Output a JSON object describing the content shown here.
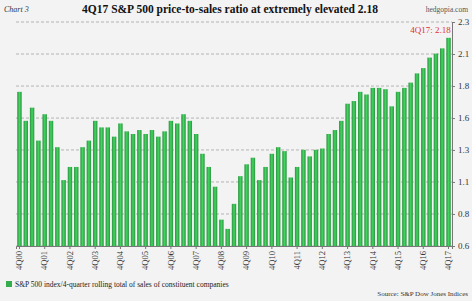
{
  "chart_data": {
    "type": "bar",
    "chart_label": "Chart 3",
    "credit": "hedgopia.com",
    "title": "4Q17 S&P 500 price-to-sales ratio at extremely elevated 2.18",
    "annotations": [
      "4Q17: 2.18"
    ],
    "source": "Source: S&P Dow Jones Indices",
    "categories": [
      "4Q00",
      null,
      null,
      null,
      "4Q01",
      null,
      null,
      null,
      "4Q02",
      null,
      null,
      null,
      "4Q03",
      null,
      null,
      null,
      "4Q04",
      null,
      null,
      null,
      "4Q05",
      null,
      null,
      null,
      "4Q06",
      null,
      null,
      null,
      "4Q07",
      null,
      null,
      null,
      "4Q08",
      null,
      null,
      null,
      "4Q09",
      null,
      null,
      null,
      "4Q10",
      null,
      null,
      null,
      "4Q11",
      null,
      null,
      null,
      "4Q12",
      null,
      null,
      null,
      "4Q13",
      null,
      null,
      null,
      "4Q14",
      null,
      null,
      null,
      "4Q15",
      null,
      null,
      null,
      "4Q16",
      null,
      null,
      null,
      "4Q17"
    ],
    "series": [
      {
        "name": "S&P 500 index/4-quarter rolling total of sales of constituent companies",
        "color": "#34ad4c",
        "values": [
          1.77,
          1.55,
          1.65,
          1.4,
          1.6,
          1.55,
          1.35,
          1.1,
          1.2,
          1.2,
          1.35,
          1.4,
          1.55,
          1.5,
          1.5,
          1.43,
          1.53,
          1.47,
          1.45,
          1.48,
          1.45,
          1.48,
          1.43,
          1.47,
          1.55,
          1.53,
          1.6,
          1.55,
          1.45,
          1.3,
          1.2,
          1.05,
          0.8,
          0.73,
          0.92,
          1.13,
          1.22,
          1.27,
          1.1,
          1.2,
          1.3,
          1.35,
          1.32,
          1.12,
          1.2,
          1.33,
          1.28,
          1.33,
          1.34,
          1.45,
          1.48,
          1.55,
          1.68,
          1.7,
          1.77,
          1.75,
          1.8,
          1.8,
          1.79,
          1.66,
          1.77,
          1.8,
          1.84,
          1.91,
          1.95,
          2.03,
          2.06,
          2.1,
          2.18
        ]
      }
    ],
    "ylim": [
      0.6,
      2.3
    ],
    "yticks": [
      {
        "value": 0.6,
        "label": "0.6"
      },
      {
        "value": 0.843,
        "label": "0.8"
      },
      {
        "value": 1.086,
        "label": "1.1"
      },
      {
        "value": 1.329,
        "label": "1.3"
      },
      {
        "value": 1.571,
        "label": "1.6"
      },
      {
        "value": 1.814,
        "label": "1.8"
      },
      {
        "value": 2.057,
        "label": "2.1"
      },
      {
        "value": 2.3,
        "label": "2.3"
      }
    ],
    "grid": true
  }
}
